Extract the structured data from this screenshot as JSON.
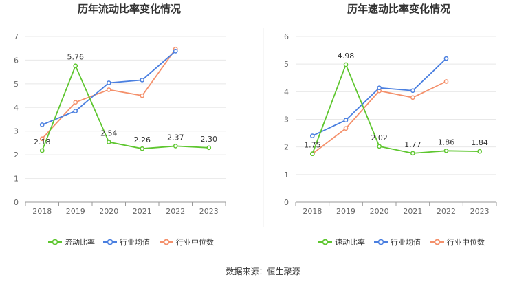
{
  "chart_data": [
    {
      "type": "line",
      "title": "历年流动比率变化情况",
      "categories": [
        "2018",
        "2019",
        "2020",
        "2021",
        "2022",
        "2023"
      ],
      "ylim": [
        0,
        7
      ],
      "yticks": [
        0,
        1,
        2,
        3,
        4,
        5,
        6,
        7
      ],
      "grid": true,
      "legend_placement": "bottom",
      "series": [
        {
          "name": "流动比率",
          "color": "#5ec62f",
          "values": [
            2.18,
            5.76,
            2.54,
            2.26,
            2.37,
            2.3
          ],
          "labels": [
            "2.18",
            "5.76",
            "2.54",
            "2.26",
            "2.37",
            "2.30"
          ]
        },
        {
          "name": "行业均值",
          "color": "#4a7fe0",
          "values": [
            3.27,
            3.85,
            5.04,
            5.16,
            6.38,
            null
          ]
        },
        {
          "name": "行业中位数",
          "color": "#f4906b",
          "values": [
            2.68,
            4.22,
            4.75,
            4.5,
            6.47,
            null
          ]
        }
      ]
    },
    {
      "type": "line",
      "title": "历年速动比率变化情况",
      "categories": [
        "2018",
        "2019",
        "2020",
        "2021",
        "2022",
        "2023"
      ],
      "ylim": [
        0,
        6
      ],
      "yticks": [
        0,
        1,
        2,
        3,
        4,
        5,
        6
      ],
      "grid": true,
      "legend_placement": "bottom",
      "series": [
        {
          "name": "速动比率",
          "color": "#5ec62f",
          "values": [
            1.75,
            4.98,
            2.02,
            1.77,
            1.86,
            1.84
          ],
          "labels": [
            "1.75",
            "4.98",
            "2.02",
            "1.77",
            "1.86",
            "1.84"
          ]
        },
        {
          "name": "行业均值",
          "color": "#4a7fe0",
          "values": [
            2.4,
            2.97,
            4.14,
            4.04,
            5.2,
            null
          ]
        },
        {
          "name": "行业中位数",
          "color": "#f4906b",
          "values": [
            1.75,
            2.67,
            4.03,
            3.79,
            4.37,
            null
          ]
        }
      ]
    }
  ],
  "source": "数据来源：恒生聚源"
}
